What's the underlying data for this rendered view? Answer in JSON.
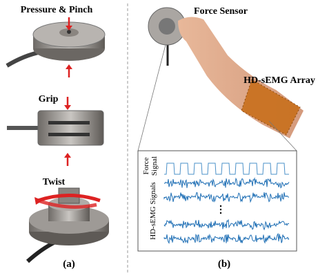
{
  "panel_a": {
    "labels": [
      "Pressure & Pinch",
      "Grip",
      "Twist"
    ],
    "caption": "(a)"
  },
  "panel_b": {
    "force_sensor": "Force Sensor",
    "array": "HD-sEMG Array",
    "signal_box": {
      "force_label": [
        "Force",
        "Signal"
      ],
      "emg_label": "HD-sEMG Signals"
    },
    "caption": "(b)"
  }
}
